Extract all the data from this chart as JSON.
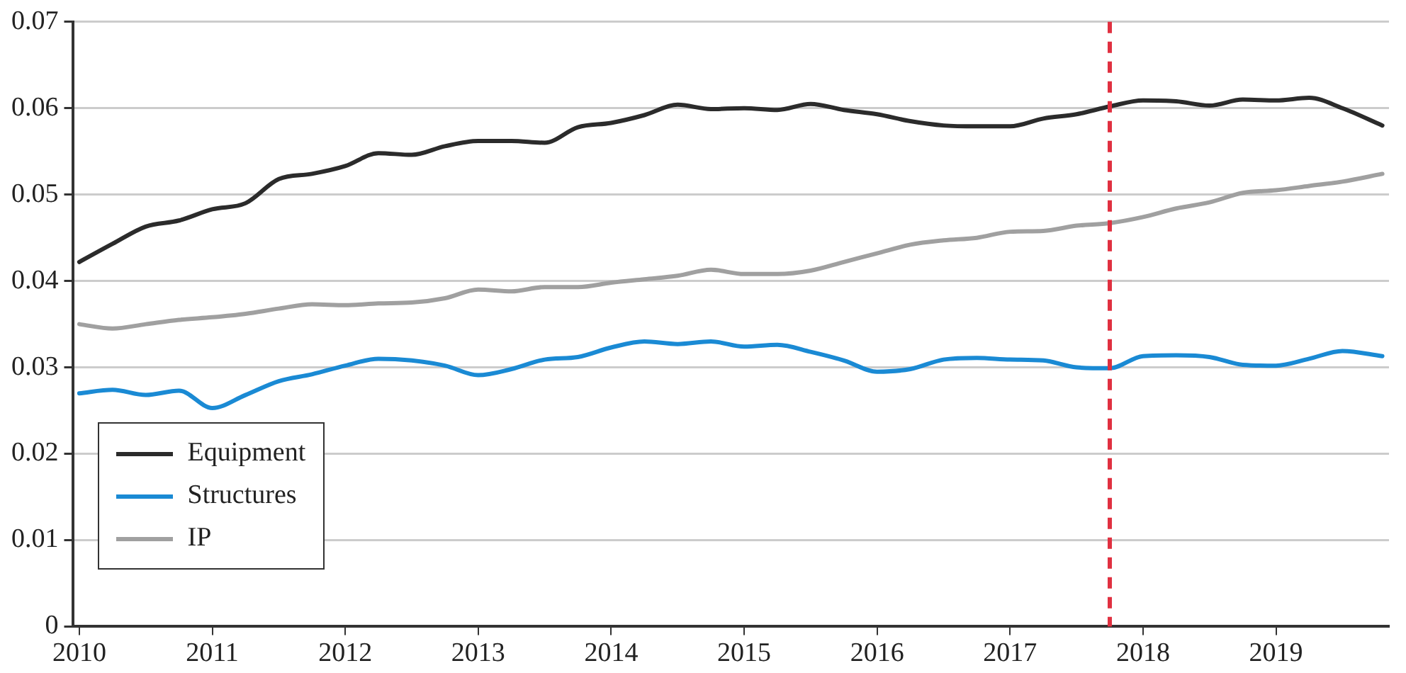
{
  "chart_data": {
    "type": "line",
    "x": [
      2010,
      2010.25,
      2010.5,
      2010.75,
      2011,
      2011.25,
      2011.5,
      2011.75,
      2012,
      2012.25,
      2012.5,
      2012.75,
      2013,
      2013.25,
      2013.5,
      2013.75,
      2014,
      2014.25,
      2014.5,
      2014.75,
      2015,
      2015.25,
      2015.5,
      2015.75,
      2016,
      2016.25,
      2016.5,
      2016.75,
      2017,
      2017.25,
      2017.5,
      2017.75,
      2018,
      2018.25,
      2018.5,
      2018.75,
      2019,
      2019.25,
      2019.5,
      2019.8
    ],
    "series": [
      {
        "name": "Equipment",
        "color": "#2b2b2b",
        "values": [
          0.0422,
          0.0443,
          0.0463,
          0.047,
          0.0483,
          0.049,
          0.0518,
          0.0524,
          0.0533,
          0.0548,
          0.0546,
          0.0556,
          0.0562,
          0.0562,
          0.056,
          0.0578,
          0.0583,
          0.0592,
          0.0604,
          0.0599,
          0.06,
          0.0598,
          0.0605,
          0.0598,
          0.0593,
          0.0585,
          0.058,
          0.0579,
          0.0579,
          0.0588,
          0.0593,
          0.0602,
          0.0609,
          0.0608,
          0.0603,
          0.061,
          0.0609,
          0.0612,
          0.06,
          0.058
        ]
      },
      {
        "name": "Structures",
        "color": "#1a8ad4",
        "values": [
          0.027,
          0.0274,
          0.0268,
          0.0273,
          0.0253,
          0.0268,
          0.0284,
          0.0292,
          0.0302,
          0.031,
          0.0308,
          0.0302,
          0.0291,
          0.0298,
          0.0309,
          0.0312,
          0.0323,
          0.033,
          0.0327,
          0.033,
          0.0324,
          0.0326,
          0.0318,
          0.0308,
          0.0295,
          0.0298,
          0.0309,
          0.0311,
          0.0309,
          0.0308,
          0.03,
          0.0299,
          0.0313,
          0.0314,
          0.0312,
          0.0303,
          0.0302,
          0.031,
          0.0319,
          0.0313
        ]
      },
      {
        "name": "IP",
        "color": "#a0a0a0",
        "values": [
          0.035,
          0.0345,
          0.035,
          0.0355,
          0.0358,
          0.0362,
          0.0368,
          0.0373,
          0.0372,
          0.0374,
          0.0375,
          0.038,
          0.039,
          0.0388,
          0.0393,
          0.0393,
          0.0398,
          0.0402,
          0.0406,
          0.0413,
          0.0408,
          0.0408,
          0.0412,
          0.0422,
          0.0432,
          0.0442,
          0.0447,
          0.045,
          0.0457,
          0.0458,
          0.0464,
          0.0467,
          0.0474,
          0.0484,
          0.0491,
          0.0502,
          0.0505,
          0.051,
          0.0515,
          0.0524
        ]
      }
    ],
    "xlim": [
      2009.95,
      2019.85
    ],
    "xticks": [
      2010,
      2011,
      2012,
      2013,
      2014,
      2015,
      2016,
      2017,
      2018,
      2019
    ],
    "ylim": [
      0,
      0.07
    ],
    "yticks": [
      0,
      0.01,
      0.02,
      0.03,
      0.04,
      0.05,
      0.06,
      0.07
    ],
    "ref_lines": [
      {
        "axis": "x",
        "value": 2017.75,
        "color": "#e03040",
        "line_style": "dashed"
      }
    ],
    "grid": "y",
    "legend": "bottom left",
    "marker": "none",
    "line_style": "solid"
  }
}
